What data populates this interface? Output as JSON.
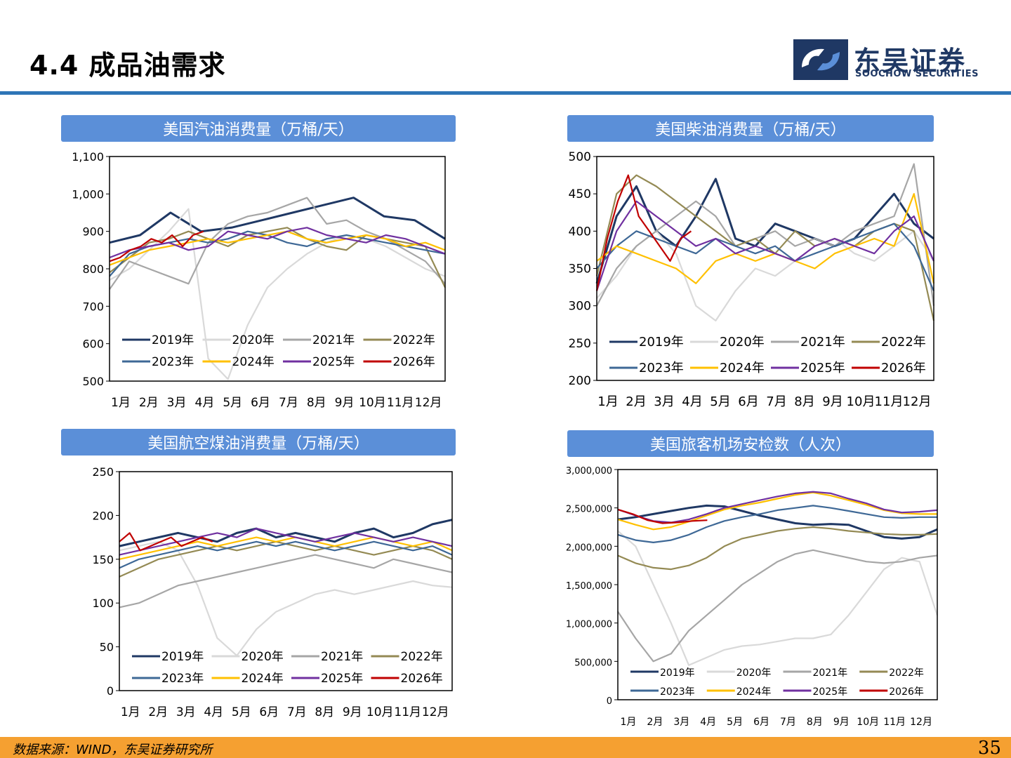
{
  "page": {
    "title": "4.4 成品油需求",
    "logo_cn": "东吴证券",
    "logo_en": "SOOCHOW SECURITIES",
    "source": "数据来源：WIND，东吴证券研究所",
    "page_number": "35"
  },
  "series_colors": {
    "2019年": "#1f3864",
    "2020年": "#d9d9d9",
    "2021年": "#a6a6a6",
    "2022年": "#948a54",
    "2023年": "#3e6896",
    "2024年": "#ffc000",
    "2025年": "#7030a0",
    "2026年": "#c00000"
  },
  "chart_data": [
    {
      "id": "gasoline",
      "type": "line",
      "title": "美国汽油消费量（万桶/天）",
      "x_labels": [
        "1月",
        "2月",
        "3月",
        "4月",
        "5月",
        "6月",
        "7月",
        "8月",
        "9月",
        "10月",
        "11月",
        "12月"
      ],
      "y_ticks": [
        500,
        600,
        700,
        800,
        900,
        1000,
        1100
      ],
      "y_tick_labels": [
        "500",
        "600",
        "700",
        "800",
        "900",
        "1,000",
        "1,100"
      ],
      "ylim": [
        500,
        1100
      ],
      "legend": [
        "2019年",
        "2020年",
        "2021年",
        "2022年",
        "2023年",
        "2024年",
        "2025年",
        "2026年"
      ],
      "series": [
        {
          "name": "2019年",
          "values": [
            870,
            890,
            950,
            900,
            910,
            930,
            950,
            970,
            990,
            940,
            930,
            880
          ]
        },
        {
          "name": "2020年",
          "values": [
            770,
            800,
            850,
            900,
            960,
            560,
            505,
            650,
            750,
            800,
            840,
            870,
            890,
            880,
            860,
            830,
            800,
            780
          ]
        },
        {
          "name": "2021年",
          "values": [
            745,
            820,
            800,
            780,
            760,
            870,
            920,
            940,
            950,
            970,
            990,
            920,
            930,
            900,
            880,
            850,
            820,
            760
          ]
        },
        {
          "name": "2022年",
          "values": [
            790,
            830,
            870,
            880,
            900,
            880,
            860,
            890,
            900,
            910,
            880,
            860,
            850,
            890,
            880,
            870,
            860,
            750
          ]
        },
        {
          "name": "2023年",
          "values": [
            780,
            840,
            860,
            870,
            880,
            870,
            880,
            900,
            890,
            870,
            860,
            880,
            890,
            880,
            870,
            860,
            850,
            840
          ]
        },
        {
          "name": "2024年",
          "values": [
            810,
            830,
            850,
            860,
            870,
            880,
            870,
            880,
            890,
            900,
            880,
            870,
            880,
            890,
            880,
            860,
            870,
            850
          ]
        },
        {
          "name": "2025年",
          "values": [
            830,
            850,
            860,
            870,
            850,
            860,
            900,
            890,
            880,
            900,
            910,
            890,
            880,
            870,
            890,
            880,
            860,
            840
          ]
        },
        {
          "name": "2026年",
          "values": [
            820,
            830,
            850,
            860,
            880,
            870,
            890,
            860,
            890,
            900
          ]
        }
      ]
    },
    {
      "id": "diesel",
      "type": "line",
      "title": "美国柴油消费量（万桶/天）",
      "x_labels": [
        "1月",
        "2月",
        "3月",
        "4月",
        "5月",
        "6月",
        "7月",
        "8月",
        "9月",
        "10月",
        "11月",
        "12月"
      ],
      "y_ticks": [
        200,
        250,
        300,
        350,
        400,
        450,
        500
      ],
      "y_tick_labels": [
        "200",
        "250",
        "300",
        "350",
        "400",
        "450",
        "500"
      ],
      "ylim": [
        200,
        500
      ],
      "legend": [
        "2019年",
        "2020年",
        "2021年",
        "2022年",
        "2023年",
        "2024年",
        "2025年",
        "2026年"
      ],
      "series": [
        {
          "name": "2019年",
          "values": [
            330,
            420,
            460,
            400,
            380,
            420,
            470,
            390,
            380,
            410,
            400,
            390,
            380,
            390,
            420,
            450,
            410,
            390
          ]
        },
        {
          "name": "2020年",
          "values": [
            310,
            340,
            380,
            400,
            370,
            300,
            280,
            320,
            350,
            340,
            360,
            380,
            390,
            370,
            360,
            380,
            400,
            360
          ]
        },
        {
          "name": "2021年",
          "values": [
            300,
            350,
            380,
            400,
            420,
            440,
            420,
            380,
            390,
            400,
            380,
            390,
            380,
            400,
            410,
            420,
            490,
            300
          ]
        },
        {
          "name": "2022年",
          "values": [
            340,
            450,
            475,
            460,
            440,
            420,
            400,
            380,
            390,
            370,
            400,
            380,
            390,
            380,
            400,
            410,
            400,
            280
          ]
        },
        {
          "name": "2023年",
          "values": [
            350,
            380,
            400,
            390,
            380,
            370,
            390,
            380,
            370,
            380,
            360,
            370,
            380,
            390,
            400,
            410,
            380,
            320
          ]
        },
        {
          "name": "2024年",
          "values": [
            360,
            380,
            370,
            360,
            350,
            330,
            360,
            370,
            360,
            370,
            360,
            350,
            370,
            380,
            390,
            380,
            450,
            330
          ]
        },
        {
          "name": "2025年",
          "values": [
            320,
            400,
            440,
            420,
            400,
            380,
            390,
            370,
            380,
            370,
            360,
            380,
            390,
            380,
            370,
            400,
            420,
            360
          ]
        },
        {
          "name": "2026年",
          "values": [
            320,
            390,
            440,
            475,
            420,
            400,
            380,
            360,
            390,
            400
          ]
        }
      ]
    },
    {
      "id": "jetfuel",
      "type": "line",
      "title": "美国航空煤油消费量（万桶/天）",
      "x_labels": [
        "1月",
        "2月",
        "3月",
        "4月",
        "5月",
        "6月",
        "7月",
        "8月",
        "9月",
        "10月",
        "11月",
        "12月"
      ],
      "y_ticks": [
        0,
        50,
        100,
        150,
        200,
        250
      ],
      "y_tick_labels": [
        "0",
        "50",
        "100",
        "150",
        "200",
        "250"
      ],
      "ylim": [
        0,
        250
      ],
      "legend": [
        "2019年",
        "2020年",
        "2021年",
        "2022年",
        "2023年",
        "2024年",
        "2025年",
        "2026年"
      ],
      "series": [
        {
          "name": "2019年",
          "values": [
            165,
            170,
            175,
            180,
            175,
            170,
            180,
            185,
            175,
            180,
            175,
            170,
            180,
            185,
            175,
            180,
            190,
            195
          ]
        },
        {
          "name": "2020年",
          "values": [
            160,
            165,
            170,
            160,
            120,
            60,
            40,
            70,
            90,
            100,
            110,
            115,
            110,
            115,
            120,
            125,
            120,
            118
          ]
        },
        {
          "name": "2021年",
          "values": [
            95,
            100,
            110,
            120,
            125,
            130,
            135,
            140,
            145,
            150,
            155,
            150,
            145,
            140,
            150,
            145,
            140,
            135
          ]
        },
        {
          "name": "2022年",
          "values": [
            130,
            140,
            150,
            155,
            160,
            165,
            160,
            165,
            170,
            165,
            160,
            165,
            160,
            155,
            160,
            165,
            160,
            150
          ]
        },
        {
          "name": "2023年",
          "values": [
            140,
            150,
            155,
            160,
            165,
            160,
            165,
            170,
            165,
            170,
            165,
            160,
            165,
            170,
            165,
            160,
            165,
            155
          ]
        },
        {
          "name": "2024年",
          "values": [
            150,
            155,
            160,
            165,
            170,
            165,
            170,
            175,
            170,
            175,
            170,
            165,
            170,
            175,
            170,
            165,
            170,
            160
          ]
        },
        {
          "name": "2025年",
          "values": [
            155,
            160,
            165,
            170,
            175,
            180,
            175,
            185,
            180,
            175,
            170,
            175,
            180,
            175,
            170,
            175,
            170,
            165
          ]
        },
        {
          "name": "2026年",
          "values": [
            170,
            180,
            160,
            165,
            170,
            175,
            165,
            170,
            175,
            170
          ]
        }
      ]
    },
    {
      "id": "tsa",
      "type": "line",
      "title": "美国旅客机场安检数（人次）",
      "x_labels": [
        "1月",
        "2月",
        "3月",
        "4月",
        "5月",
        "6月",
        "7月",
        "8月",
        "9月",
        "10月",
        "11月",
        "12月"
      ],
      "y_ticks": [
        0,
        500000,
        1000000,
        1500000,
        2000000,
        2500000,
        3000000
      ],
      "y_tick_labels": [
        "0",
        "500,000",
        "1,000,000",
        "1,500,000",
        "2,000,000",
        "2,500,000",
        "3,000,000"
      ],
      "ylim": [
        0,
        3000000
      ],
      "legend": [
        "2019年",
        "2020年",
        "2021年",
        "2022年",
        "2023年",
        "2024年",
        "2025年",
        "2026年"
      ],
      "series": [
        {
          "name": "2019年",
          "values": [
            2350000,
            2380000,
            2420000,
            2460000,
            2500000,
            2530000,
            2520000,
            2460000,
            2400000,
            2350000,
            2300000,
            2280000,
            2290000,
            2280000,
            2200000,
            2120000,
            2100000,
            2120000,
            2220000
          ]
        },
        {
          "name": "2020年",
          "values": [
            2200000,
            2000000,
            1500000,
            1000000,
            450000,
            550000,
            650000,
            700000,
            720000,
            760000,
            800000,
            800000,
            850000,
            1100000,
            1400000,
            1700000,
            1850000,
            1800000,
            1100000
          ]
        },
        {
          "name": "2021年",
          "values": [
            1150000,
            800000,
            500000,
            600000,
            900000,
            1100000,
            1300000,
            1500000,
            1650000,
            1800000,
            1900000,
            1950000,
            1900000,
            1850000,
            1800000,
            1780000,
            1800000,
            1850000,
            1880000
          ]
        },
        {
          "name": "2022年",
          "values": [
            1880000,
            1780000,
            1720000,
            1700000,
            1750000,
            1850000,
            2000000,
            2100000,
            2150000,
            2200000,
            2230000,
            2250000,
            2230000,
            2200000,
            2180000,
            2160000,
            2150000,
            2150000,
            2160000
          ]
        },
        {
          "name": "2023年",
          "values": [
            2150000,
            2080000,
            2050000,
            2080000,
            2150000,
            2250000,
            2330000,
            2380000,
            2420000,
            2470000,
            2500000,
            2530000,
            2500000,
            2460000,
            2420000,
            2380000,
            2370000,
            2380000,
            2380000
          ]
        },
        {
          "name": "2024年",
          "values": [
            2350000,
            2280000,
            2220000,
            2250000,
            2320000,
            2400000,
            2480000,
            2530000,
            2570000,
            2620000,
            2670000,
            2700000,
            2660000,
            2600000,
            2540000,
            2470000,
            2430000,
            2420000,
            2420000
          ]
        },
        {
          "name": "2025年",
          "values": [
            2480000,
            2400000,
            2330000,
            2310000,
            2350000,
            2420000,
            2500000,
            2550000,
            2600000,
            2650000,
            2690000,
            2710000,
            2690000,
            2620000,
            2560000,
            2480000,
            2440000,
            2450000,
            2470000
          ]
        },
        {
          "name": "2026年",
          "values": [
            2480000,
            2420000,
            2340000,
            2300000,
            2310000,
            2330000,
            2340000
          ]
        }
      ]
    }
  ]
}
